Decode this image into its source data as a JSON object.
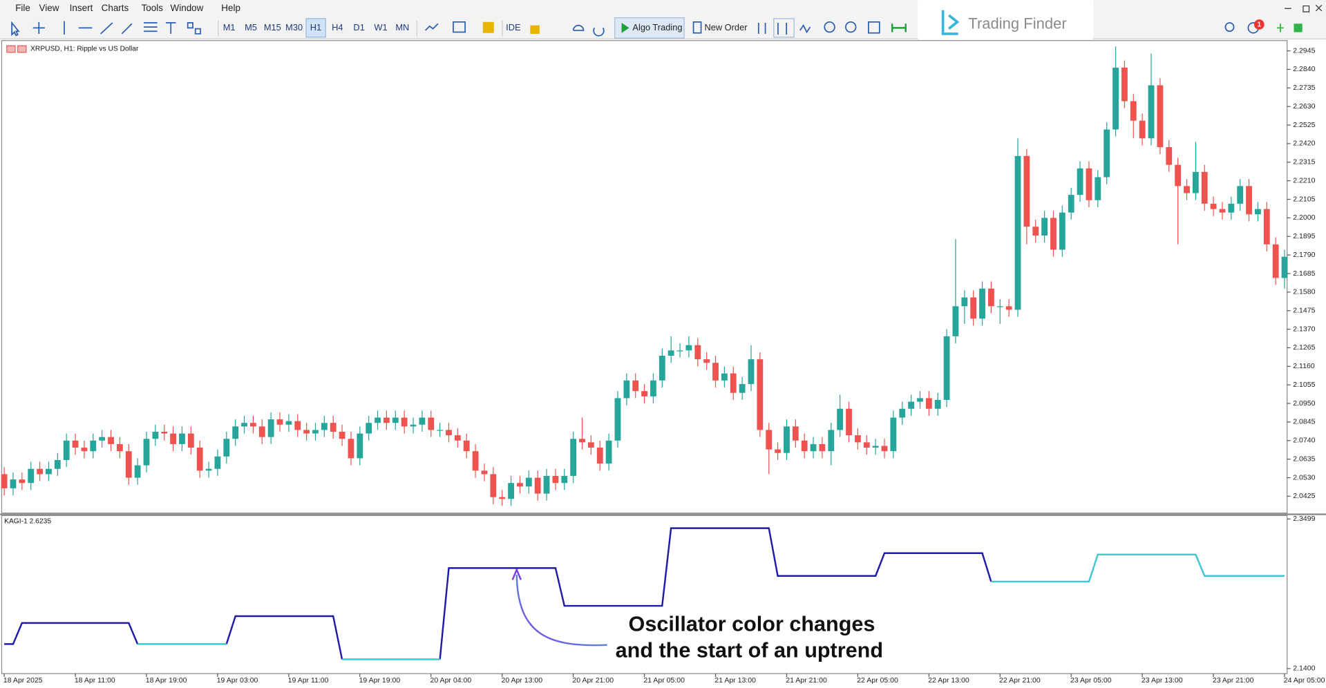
{
  "menu": [
    "File",
    "View",
    "Insert",
    "Charts",
    "Tools",
    "Window",
    "Help"
  ],
  "toolbar": {
    "timeframes": [
      "M1",
      "M5",
      "M15",
      "M30",
      "H1",
      "H4",
      "D1",
      "W1",
      "MN"
    ],
    "ide": "IDE",
    "algo_trading": "Algo Trading",
    "new_order": "New Order",
    "notification_count": 1
  },
  "logo": "Trading Finder",
  "chart_data": [
    {
      "type": "candlestick",
      "title": "XRPUSD, H1:  Ripple vs US Dollar",
      "up_color": "#26a69a",
      "down_color": "#ef5350",
      "ylim": [
        2.033,
        2.3003
      ],
      "yticks": [
        2.2945,
        {
          "value": 2.284,
          "label": "2.2840"
        },
        2.2735,
        {
          "value": 2.263,
          "label": "2.2630"
        },
        2.2525,
        {
          "value": 2.242,
          "label": "2.2420"
        },
        2.2315,
        {
          "value": 2.221,
          "label": "2.2210"
        },
        2.2105,
        {
          "value": 2.2,
          "label": "2.2000"
        },
        2.1895,
        {
          "value": 2.179,
          "label": "2.1790"
        },
        2.1685,
        {
          "value": 2.158,
          "label": "2.1580"
        },
        2.1475,
        {
          "value": 2.137,
          "label": "2.1370"
        },
        2.1265,
        {
          "value": 2.116,
          "label": "2.1160"
        },
        2.1055,
        {
          "value": 2.095,
          "label": "2.0950"
        },
        2.0845,
        {
          "value": 2.074,
          "label": "2.0740"
        },
        2.0635,
        {
          "value": 2.053,
          "label": "2.0530"
        },
        2.0425
      ],
      "open": [
        2.055,
        2.047,
        2.052,
        2.05,
        2.058,
        2.055,
        2.058,
        2.063,
        2.074,
        2.07,
        2.068,
        2.074,
        2.076,
        2.072,
        2.068,
        2.053,
        2.06,
        2.075,
        2.079,
        2.078,
        2.072,
        2.078,
        2.07,
        2.057,
        2.058,
        2.065,
        2.075,
        2.082,
        2.084,
        2.082,
        2.076,
        2.086,
        2.083,
        2.085,
        2.08,
        2.078,
        2.08,
        2.084,
        2.079,
        2.075,
        2.064,
        2.078,
        2.084,
        2.087,
        2.084,
        2.087,
        2.082,
        2.083,
        2.087,
        2.08,
        2.08,
        2.077,
        2.074,
        2.068,
        2.057,
        2.055,
        2.042,
        2.041,
        2.05,
        2.048,
        2.053,
        2.044,
        2.054,
        2.05,
        2.054,
        2.075,
        2.073,
        2.07,
        2.061,
        2.074,
        2.098,
        2.108,
        2.102,
        2.099,
        2.108,
        2.122,
        2.125,
        2.125,
        2.128,
        2.12,
        2.118,
        2.108,
        2.112,
        2.101,
        2.106,
        2.12,
        2.08,
        2.069,
        2.067,
        2.082,
        2.074,
        2.068,
        2.072,
        2.068,
        2.08,
        2.092,
        2.077,
        2.073,
        2.07,
        2.071,
        2.068,
        2.087,
        2.092,
        2.096,
        2.098,
        2.092,
        2.097,
        2.133,
        2.15,
        2.155,
        2.143,
        2.16,
        2.15,
        2.15,
        2.148,
        2.235,
        2.195,
        2.19,
        2.2,
        2.182,
        2.203,
        2.213,
        2.228,
        2.21,
        2.223,
        2.25,
        2.285,
        2.266,
        2.255,
        2.245,
        2.275,
        2.24,
        2.23,
        2.218,
        2.214,
        2.226,
        2.208,
        2.205,
        2.203,
        2.208,
        2.218,
        2.202,
        2.205,
        2.185,
        2.166
      ],
      "high": [
        2.059,
        2.056,
        2.056,
        2.062,
        2.062,
        2.062,
        2.067,
        2.078,
        2.078,
        2.074,
        2.078,
        2.08,
        2.08,
        2.076,
        2.072,
        2.064,
        2.079,
        2.083,
        2.083,
        2.082,
        2.082,
        2.082,
        2.074,
        2.062,
        2.069,
        2.079,
        2.086,
        2.088,
        2.088,
        2.086,
        2.09,
        2.09,
        2.089,
        2.089,
        2.084,
        2.084,
        2.088,
        2.088,
        2.083,
        2.079,
        2.082,
        2.088,
        2.091,
        2.091,
        2.091,
        2.091,
        2.087,
        2.091,
        2.091,
        2.084,
        2.084,
        2.081,
        2.078,
        2.072,
        2.061,
        2.059,
        2.046,
        2.054,
        2.054,
        2.057,
        2.057,
        2.058,
        2.058,
        2.058,
        2.079,
        2.087,
        2.077,
        2.074,
        2.078,
        2.102,
        2.112,
        2.112,
        2.106,
        2.112,
        2.126,
        2.133,
        2.129,
        2.133,
        2.132,
        2.124,
        2.122,
        2.116,
        2.116,
        2.11,
        2.128,
        2.124,
        2.084,
        2.073,
        2.086,
        2.086,
        2.078,
        2.076,
        2.076,
        2.084,
        2.1,
        2.096,
        2.081,
        2.077,
        2.075,
        2.075,
        2.091,
        2.096,
        2.1,
        2.102,
        2.102,
        2.101,
        2.137,
        2.188,
        2.159,
        2.159,
        2.164,
        2.164,
        2.154,
        2.154,
        2.245,
        2.239,
        2.199,
        2.204,
        2.204,
        2.207,
        2.217,
        2.232,
        2.232,
        2.227,
        2.254,
        2.297,
        2.289,
        2.27,
        2.259,
        2.293,
        2.279,
        2.244,
        2.234,
        2.222,
        2.243,
        2.23,
        2.212,
        2.209,
        2.212,
        2.222,
        2.222,
        2.209,
        2.209,
        2.189,
        2.182
      ],
      "low": [
        2.043,
        2.043,
        2.046,
        2.046,
        2.051,
        2.051,
        2.054,
        2.059,
        2.066,
        2.064,
        2.064,
        2.07,
        2.068,
        2.064,
        2.049,
        2.049,
        2.056,
        2.071,
        2.074,
        2.068,
        2.068,
        2.066,
        2.053,
        2.053,
        2.054,
        2.061,
        2.071,
        2.078,
        2.078,
        2.072,
        2.072,
        2.079,
        2.079,
        2.076,
        2.074,
        2.074,
        2.076,
        2.075,
        2.071,
        2.06,
        2.06,
        2.074,
        2.08,
        2.08,
        2.08,
        2.078,
        2.078,
        2.079,
        2.076,
        2.076,
        2.073,
        2.07,
        2.064,
        2.053,
        2.051,
        2.038,
        2.037,
        2.037,
        2.044,
        2.044,
        2.04,
        2.04,
        2.046,
        2.046,
        2.05,
        2.069,
        2.066,
        2.057,
        2.057,
        2.07,
        2.094,
        2.098,
        2.095,
        2.095,
        2.104,
        2.118,
        2.121,
        2.121,
        2.116,
        2.114,
        2.104,
        2.104,
        2.097,
        2.097,
        2.102,
        2.076,
        2.055,
        2.063,
        2.063,
        2.07,
        2.064,
        2.064,
        2.064,
        2.06,
        2.076,
        2.073,
        2.069,
        2.066,
        2.066,
        2.064,
        2.064,
        2.083,
        2.088,
        2.092,
        2.088,
        2.088,
        2.093,
        2.129,
        2.14,
        2.139,
        2.139,
        2.146,
        2.14,
        2.144,
        2.144,
        2.185,
        2.186,
        2.186,
        2.178,
        2.178,
        2.199,
        2.209,
        2.206,
        2.206,
        2.219,
        2.246,
        2.262,
        2.245,
        2.241,
        2.241,
        2.236,
        2.226,
        2.185,
        2.21,
        2.21,
        2.204,
        2.201,
        2.199,
        2.199,
        2.204,
        2.198,
        2.198,
        2.181,
        2.162,
        2.16
      ],
      "close": [
        2.047,
        2.052,
        2.05,
        2.058,
        2.055,
        2.058,
        2.063,
        2.074,
        2.07,
        2.068,
        2.074,
        2.076,
        2.072,
        2.068,
        2.053,
        2.06,
        2.075,
        2.079,
        2.078,
        2.072,
        2.078,
        2.07,
        2.057,
        2.058,
        2.065,
        2.075,
        2.082,
        2.084,
        2.082,
        2.076,
        2.086,
        2.083,
        2.085,
        2.08,
        2.078,
        2.08,
        2.084,
        2.079,
        2.075,
        2.064,
        2.078,
        2.084,
        2.087,
        2.084,
        2.087,
        2.082,
        2.083,
        2.087,
        2.08,
        2.08,
        2.077,
        2.074,
        2.068,
        2.057,
        2.055,
        2.042,
        2.041,
        2.05,
        2.048,
        2.053,
        2.044,
        2.054,
        2.05,
        2.054,
        2.075,
        2.073,
        2.07,
        2.061,
        2.074,
        2.098,
        2.108,
        2.102,
        2.099,
        2.108,
        2.122,
        2.125,
        2.125,
        2.128,
        2.12,
        2.118,
        2.108,
        2.112,
        2.101,
        2.106,
        2.12,
        2.08,
        2.069,
        2.067,
        2.082,
        2.074,
        2.068,
        2.072,
        2.068,
        2.08,
        2.092,
        2.077,
        2.073,
        2.07,
        2.071,
        2.068,
        2.087,
        2.092,
        2.096,
        2.098,
        2.092,
        2.097,
        2.133,
        2.15,
        2.155,
        2.143,
        2.16,
        2.15,
        2.15,
        2.148,
        2.235,
        2.195,
        2.19,
        2.2,
        2.182,
        2.203,
        2.213,
        2.228,
        2.21,
        2.223,
        2.25,
        2.285,
        2.266,
        2.255,
        2.245,
        2.275,
        2.24,
        2.23,
        2.218,
        2.214,
        2.226,
        2.208,
        2.205,
        2.203,
        2.208,
        2.218,
        2.202,
        2.205,
        2.185,
        2.166,
        2.178
      ]
    },
    {
      "type": "line",
      "title": "KAGI-1 2.6235",
      "ylim": [
        2.1329,
        2.3535
      ],
      "yticks": [
        2.3499,
        {
          "value": 2.14,
          "label": "2.1400"
        }
      ],
      "annotation": [
        "Oscillator color changes",
        "and the start of an uptrend"
      ],
      "categories": [
        "18 Apr 2025",
        null,
        null,
        null,
        null,
        null,
        null,
        null,
        "18 Apr 11:00",
        null,
        null,
        null,
        null,
        null,
        null,
        null,
        "18 Apr 19:00",
        null,
        null,
        null,
        null,
        null,
        null,
        null,
        "19 Apr 03:00",
        null,
        null,
        null,
        null,
        null,
        null,
        null,
        "19 Apr 11:00",
        null,
        null,
        null,
        null,
        null,
        null,
        null,
        "19 Apr 19:00",
        null,
        null,
        null,
        null,
        null,
        null,
        null,
        "20 Apr 04:00",
        null,
        null,
        null,
        null,
        null,
        null,
        null,
        "20 Apr 13:00",
        null,
        null,
        null,
        null,
        null,
        null,
        null,
        "20 Apr 21:00",
        null,
        null,
        null,
        null,
        null,
        null,
        null,
        "21 Apr 05:00",
        null,
        null,
        null,
        null,
        null,
        null,
        null,
        "21 Apr 13:00",
        null,
        null,
        null,
        null,
        null,
        null,
        null,
        "21 Apr 21:00",
        null,
        null,
        null,
        null,
        null,
        null,
        null,
        "22 Apr 05:00",
        null,
        null,
        null,
        null,
        null,
        null,
        null,
        "22 Apr 13:00",
        null,
        null,
        null,
        null,
        null,
        null,
        null,
        "22 Apr 21:00",
        null,
        null,
        null,
        null,
        null,
        null,
        null,
        "23 Apr 05:00",
        null,
        null,
        null,
        null,
        null,
        null,
        null,
        "23 Apr 13:00",
        null,
        null,
        null,
        null,
        null,
        null,
        null,
        "23 Apr 21:00",
        null,
        null,
        null,
        null,
        null,
        null,
        null,
        "24 Apr 05:00"
      ],
      "series": [
        {
          "color": "#1c1ca8",
          "values": [
            2.1744,
            2.1744,
            2.204,
            2.204,
            2.204,
            2.204,
            2.204,
            2.204,
            2.204,
            2.204,
            2.204,
            2.204,
            2.204,
            2.204,
            2.204,
            2.1744,
            null,
            null,
            null,
            null,
            null,
            null,
            null,
            null,
            null,
            2.1744,
            2.2135,
            2.2135,
            2.2135,
            2.2135,
            2.2135,
            2.2135,
            2.2135,
            2.2135,
            2.2135,
            2.2135,
            2.2135,
            2.2135,
            2.153,
            null,
            null,
            null,
            null,
            null,
            null,
            null,
            null,
            null,
            null,
            2.153,
            2.281,
            2.281,
            2.281,
            2.281,
            2.281,
            2.281,
            2.281,
            2.281,
            2.281,
            2.281,
            2.281,
            2.281,
            2.281,
            2.228,
            2.228,
            2.228,
            2.228,
            2.228,
            2.228,
            2.228,
            2.228,
            2.228,
            2.228,
            2.228,
            2.228,
            2.337,
            2.337,
            2.337,
            2.337,
            2.337,
            2.337,
            2.337,
            2.337,
            2.337,
            2.337,
            2.337,
            2.337,
            2.27,
            2.27,
            2.27,
            2.27,
            2.27,
            2.27,
            2.27,
            2.27,
            2.27,
            2.27,
            2.27,
            2.27,
            2.302,
            2.302,
            2.302,
            2.302,
            2.302,
            2.302,
            2.302,
            2.302,
            2.302,
            2.302,
            2.302,
            2.302,
            2.262,
            null,
            null,
            null,
            null,
            null,
            null,
            null,
            null,
            null,
            null,
            null,
            null,
            null,
            null,
            null,
            null,
            null,
            null,
            null,
            null,
            null,
            null,
            null,
            null,
            null,
            null,
            null,
            null,
            null,
            null,
            null,
            null,
            null
          ]
        },
        {
          "color": "#3cc6d6",
          "values": [
            null,
            null,
            null,
            null,
            null,
            null,
            null,
            null,
            null,
            null,
            null,
            null,
            null,
            null,
            null,
            2.1744,
            2.1744,
            2.1744,
            2.1744,
            2.1744,
            2.1744,
            2.1744,
            2.1744,
            2.1744,
            2.1744,
            2.1744,
            null,
            null,
            null,
            null,
            null,
            null,
            null,
            null,
            null,
            null,
            null,
            null,
            2.153,
            2.153,
            2.153,
            2.153,
            2.153,
            2.153,
            2.153,
            2.153,
            2.153,
            2.153,
            2.153,
            2.153,
            null,
            null,
            null,
            null,
            null,
            null,
            null,
            null,
            null,
            null,
            null,
            null,
            null,
            null,
            null,
            null,
            null,
            null,
            null,
            null,
            null,
            null,
            null,
            null,
            null,
            null,
            null,
            null,
            null,
            null,
            null,
            null,
            null,
            null,
            null,
            null,
            null,
            null,
            null,
            null,
            null,
            null,
            null,
            null,
            null,
            null,
            null,
            null,
            null,
            null,
            null,
            null,
            null,
            null,
            null,
            null,
            null,
            null,
            null,
            null,
            null,
            2.262,
            2.262,
            2.262,
            2.262,
            2.262,
            2.262,
            2.262,
            2.262,
            2.262,
            2.262,
            2.262,
            2.262,
            2.3,
            2.3,
            2.3,
            2.3,
            2.3,
            2.3,
            2.3,
            2.3,
            2.3,
            2.3,
            2.3,
            2.3,
            2.27,
            2.27,
            2.27,
            2.27,
            2.27,
            2.27,
            2.27,
            2.27,
            2.27,
            2.27
          ]
        }
      ]
    }
  ]
}
